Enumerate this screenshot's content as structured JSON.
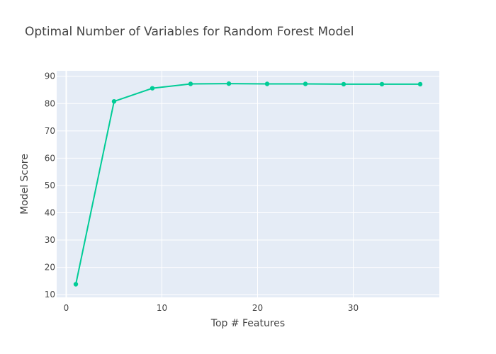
{
  "chart": {
    "title": "Optimal Number of Variables for Random Forest Model",
    "xlabel": "Top # Features",
    "ylabel": "Model Score"
  },
  "chart_data": {
    "type": "line",
    "title": "Optimal Number of Variables for Random Forest Model",
    "xlabel": "Top # Features",
    "ylabel": "Model Score",
    "xlim": [
      -1,
      39
    ],
    "ylim": [
      9,
      92
    ],
    "x_ticks": [
      0,
      10,
      20,
      30
    ],
    "y_ticks": [
      10,
      20,
      30,
      40,
      50,
      60,
      70,
      80,
      90
    ],
    "grid": true,
    "legend": "none",
    "colors": {
      "line": "#00cc96",
      "plot_background": "#e5ecf6",
      "grid": "#ffffff",
      "text": "#444444"
    },
    "x": [
      1,
      5,
      9,
      13,
      17,
      21,
      25,
      29,
      33,
      37
    ],
    "series": [
      {
        "values": [
          13.8,
          80.8,
          85.6,
          87.2,
          87.3,
          87.2,
          87.2,
          87.1,
          87.1,
          87.1
        ]
      }
    ]
  }
}
